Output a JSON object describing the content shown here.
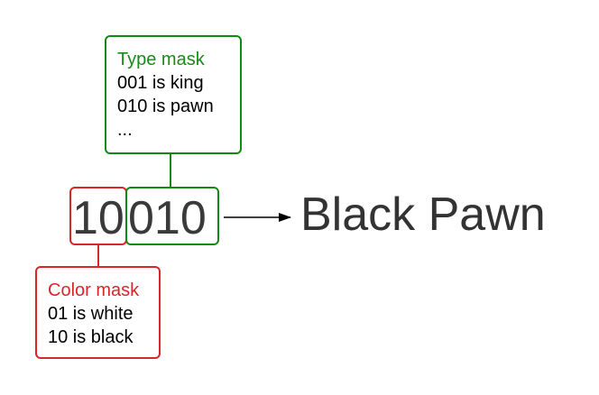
{
  "type_mask": {
    "heading": "Type mask",
    "lines": [
      "001 is king",
      "010 is pawn",
      "..."
    ]
  },
  "color_mask": {
    "heading": "Color mask",
    "lines": [
      "01 is white",
      "10 is black"
    ]
  },
  "bits": {
    "color_bits": "10",
    "type_bits": "010"
  },
  "result": "Black Pawn",
  "colors": {
    "green": "#118a11",
    "red": "#d9262b",
    "text": "#333333"
  }
}
